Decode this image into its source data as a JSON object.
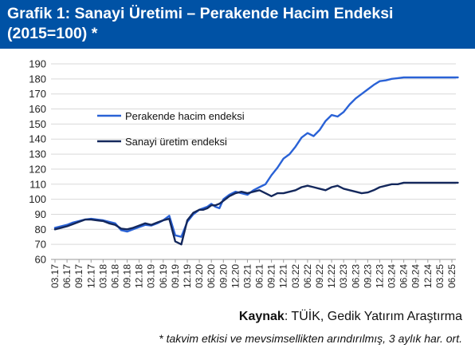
{
  "title": "Grafik 1: Sanayi Üretimi – Perakende Hacim Endeksi (2015=100) *",
  "source_label": "Kaynak",
  "source_text": ": TÜİK, Gedik Yatırım Araştırma",
  "footnote": "* takvim etkisi ve mevsimsellikten arındırılmış, 3 aylık har. ort.",
  "colors": {
    "header_bg": "#0052a5",
    "retail": "#2a62d6",
    "industry": "#14285c"
  },
  "chart_data": {
    "type": "line",
    "x_categories": [
      "03.17",
      "06.17",
      "09.17",
      "12.17",
      "03.18",
      "06.18",
      "09.18",
      "12.18",
      "03.19",
      "06.19",
      "09.19",
      "12.19",
      "03.20",
      "06.20",
      "09.20",
      "12.20",
      "03.21",
      "06.21",
      "09.21",
      "12.21",
      "03.22",
      "06.22",
      "09.22",
      "12.22",
      "03.23",
      "06.23",
      "09.23",
      "12.23",
      "03.24",
      "06.24",
      "09.24",
      "12.24",
      "03.25",
      "06.25"
    ],
    "ylim": [
      60,
      190
    ],
    "yticks": [
      60,
      70,
      80,
      90,
      100,
      110,
      120,
      130,
      140,
      150,
      160,
      170,
      180,
      190
    ],
    "grid": "horizontal",
    "legend_position": "upper-left",
    "series": [
      {
        "name": "Perakende hacim endeksi",
        "color": "#2a62d6",
        "x": [
          0,
          0.5,
          1,
          1.5,
          2,
          2.5,
          3,
          3.5,
          4,
          4.5,
          5,
          5.5,
          6,
          6.5,
          7,
          7.5,
          8,
          8.5,
          9,
          9.5,
          10,
          10.5,
          11,
          11.5,
          12,
          12.33,
          12.67,
          13,
          13.33,
          13.67,
          14,
          14.5,
          15,
          15.5,
          16,
          16.5,
          17,
          17.5,
          18,
          18.5,
          19,
          19.5,
          20,
          20.5,
          21,
          21.5,
          22,
          22.5,
          23,
          23.5,
          24,
          24.5,
          25,
          25.5,
          26,
          26.5,
          27,
          27.5,
          28,
          28.5,
          29,
          29.5,
          30,
          30.5,
          31,
          31.5,
          32,
          32.5,
          33,
          33.5
        ],
        "values": [
          81,
          82,
          83,
          84.5,
          85.5,
          86.5,
          87,
          86.5,
          86,
          85,
          84,
          79.5,
          78.5,
          80,
          81.5,
          83,
          82.5,
          84,
          86,
          89,
          76,
          75,
          85,
          90,
          93,
          94,
          95,
          97,
          95,
          94,
          100,
          103,
          105,
          104,
          103,
          106,
          108,
          110,
          116,
          121,
          127,
          130,
          135,
          141,
          144,
          142,
          146,
          152,
          156,
          155,
          158,
          163,
          167,
          170,
          173,
          176,
          178.5,
          179,
          180,
          180.5,
          181,
          181,
          181,
          181,
          181,
          181,
          181,
          181,
          181,
          181
        ]
      },
      {
        "name": "Sanayi üretim endeksi",
        "color": "#14285c",
        "x": [
          0,
          0.5,
          1,
          1.5,
          2,
          2.5,
          3,
          3.5,
          4,
          4.5,
          5,
          5.5,
          6,
          6.5,
          7,
          7.5,
          8,
          8.5,
          9,
          9.5,
          10,
          10.5,
          11,
          11.5,
          12,
          12.33,
          12.67,
          13,
          13.33,
          13.67,
          14,
          14.5,
          15,
          15.5,
          16,
          16.5,
          17,
          17.5,
          18,
          18.5,
          19,
          19.5,
          20,
          20.5,
          21,
          21.5,
          22,
          22.5,
          23,
          23.5,
          24,
          24.5,
          25,
          25.5,
          26,
          26.5,
          27,
          27.5,
          28,
          28.5,
          29,
          29.5,
          30,
          30.5,
          31,
          31.5,
          32,
          32.5,
          33,
          33.5
        ],
        "values": [
          80,
          81,
          82,
          83.5,
          85,
          86.5,
          86.5,
          86,
          85.5,
          84,
          83,
          80.5,
          80,
          81,
          82.5,
          84,
          83,
          84.5,
          86,
          87,
          72,
          70,
          86,
          91,
          93,
          93,
          94,
          96,
          96,
          97,
          99,
          102,
          104,
          105,
          104,
          105,
          106,
          104,
          102,
          104,
          104,
          105,
          106,
          108,
          109,
          108,
          107,
          106,
          108,
          109,
          107,
          106,
          105,
          104,
          104.5,
          106,
          108,
          109,
          110,
          110,
          111,
          111,
          111,
          111,
          111,
          111,
          111,
          111,
          111,
          111
        ]
      }
    ]
  }
}
